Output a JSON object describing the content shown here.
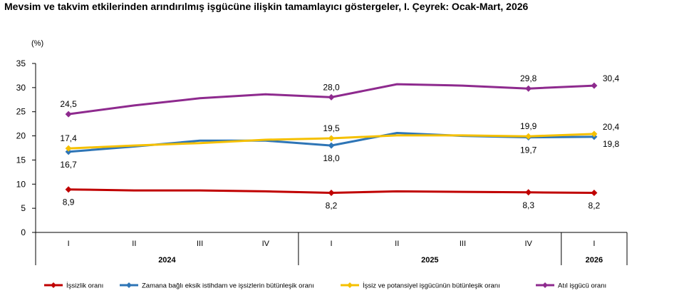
{
  "title": "Mevsim ve takvim etkilerinden arındırılmış işgücüne ilişkin tamamlayıcı göstergeler, I. Çeyrek: Ocak-Mart, 2026",
  "chart_data": {
    "type": "line",
    "title": "Mevsim ve takvim etkilerinden arındırılmış işgücüne ilişkin tamamlayıcı göstergeler, I. Çeyrek: Ocak-Mart, 2026",
    "ylabel": "(%)",
    "xlabel": "",
    "ylim": [
      0,
      35
    ],
    "yticks": [
      0,
      5,
      10,
      15,
      20,
      25,
      30,
      35
    ],
    "grid": false,
    "legend_position": "bottom",
    "categories": [
      "I",
      "II",
      "III",
      "IV",
      "I",
      "II",
      "III",
      "IV",
      "I"
    ],
    "year_groups": [
      {
        "label": "2024",
        "span": 4
      },
      {
        "label": "2025",
        "span": 4
      },
      {
        "label": "2026",
        "span": 1
      }
    ],
    "series": [
      {
        "name": "İşsizlik oranı",
        "color": "#c00000",
        "values": [
          8.9,
          8.7,
          8.7,
          8.5,
          8.2,
          8.5,
          8.4,
          8.3,
          8.2
        ],
        "labels": [
          {
            "index": 0,
            "text": "8,9",
            "pos": "below"
          },
          {
            "index": 4,
            "text": "8,2",
            "pos": "below"
          },
          {
            "index": 7,
            "text": "8,3",
            "pos": "below"
          },
          {
            "index": 8,
            "text": "8,2",
            "pos": "below"
          }
        ]
      },
      {
        "name": "Zamana bağlı eksik istihdam ve işsizlerin bütünleşik oranı",
        "color": "#2e75b6",
        "values": [
          16.7,
          17.8,
          19.0,
          19.0,
          18.0,
          20.6,
          20.0,
          19.7,
          19.8
        ],
        "labels": [
          {
            "index": 0,
            "text": "16,7",
            "pos": "below"
          },
          {
            "index": 4,
            "text": "18,0",
            "pos": "below"
          },
          {
            "index": 7,
            "text": "19,7",
            "pos": "below"
          },
          {
            "index": 8,
            "text": "19,8",
            "pos": "below-right"
          }
        ]
      },
      {
        "name": "İşsiz ve potansiyel işgücünün bütünleşik oranı",
        "color": "#f5c000",
        "values": [
          17.4,
          18.0,
          18.5,
          19.2,
          19.5,
          20.1,
          20.1,
          19.9,
          20.4
        ],
        "labels": [
          {
            "index": 0,
            "text": "17,4",
            "pos": "above"
          },
          {
            "index": 4,
            "text": "19,5",
            "pos": "above"
          },
          {
            "index": 7,
            "text": "19,9",
            "pos": "above"
          },
          {
            "index": 8,
            "text": "20,4",
            "pos": "above-right"
          }
        ]
      },
      {
        "name": "Atıl işgücü oranı",
        "color": "#8e2a8e",
        "values": [
          24.5,
          26.3,
          27.8,
          28.6,
          28.0,
          30.7,
          30.4,
          29.8,
          30.4
        ],
        "labels": [
          {
            "index": 0,
            "text": "24,5",
            "pos": "above"
          },
          {
            "index": 4,
            "text": "28,0",
            "pos": "above"
          },
          {
            "index": 7,
            "text": "29,8",
            "pos": "above"
          },
          {
            "index": 8,
            "text": "30,4",
            "pos": "above-right"
          }
        ]
      }
    ]
  }
}
